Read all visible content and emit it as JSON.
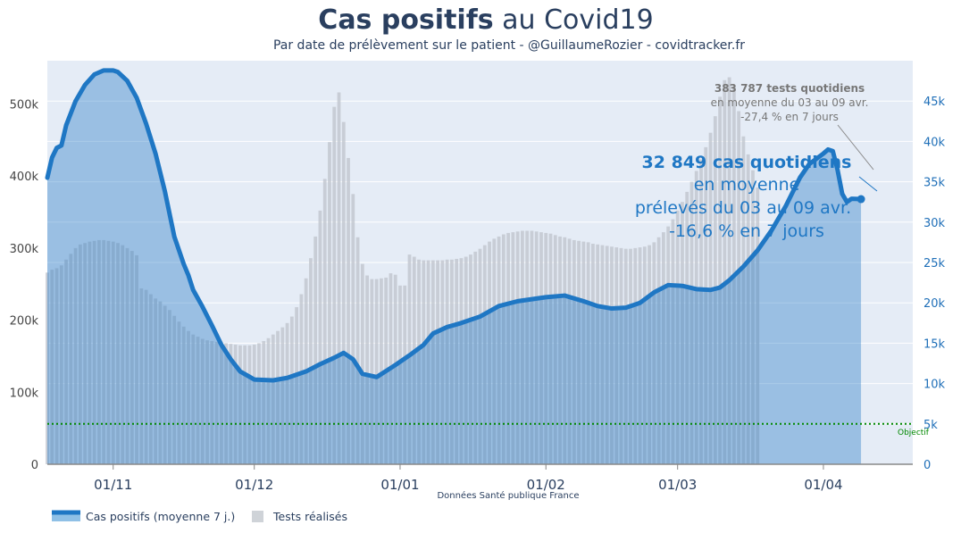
{
  "header": {
    "title_bold": "Cas positifs",
    "title_rest": " au Covid19",
    "subtitle": "Par date de prélèvement sur le patient - @GuillaumeRozier - covidtracker.fr"
  },
  "source": "Données Santé publique France",
  "legend": {
    "cases_label": "Cas positifs (moyenne 7 j.)",
    "tests_label": "Tests réalisés"
  },
  "annotations": {
    "tests": {
      "line1": "383 787 tests quotidiens",
      "line2": "en moyenne du 03 au 09 avr.",
      "line3": "-27,4 % en 7 jours"
    },
    "cases": {
      "line1": "32 849 cas quotidiens",
      "line2": "en moyenne",
      "line3": "prélevés du 03 au 09 avr.",
      "line4": "-16,6 % en 7 jours"
    },
    "objectif_label": "Objectif"
  },
  "colors": {
    "cases_line": "#1f77c4",
    "cases_fill": "#8fc0e6",
    "tests_bar": "#c3c8d0",
    "plot_bg": "#e5ecf6",
    "objectif_line": "#008800",
    "title": "#2a3f5f"
  },
  "chart_data": {
    "type": "bar+line",
    "x_ticks": [
      "01/11",
      "01/12",
      "01/01",
      "01/02",
      "01/03",
      "01/04"
    ],
    "y_left_ticks": [
      "0",
      "100k",
      "200k",
      "300k",
      "400k",
      "500k"
    ],
    "y_left_range": [
      0,
      560000
    ],
    "y_right_ticks": [
      "0",
      "5k",
      "10k",
      "15k",
      "20k",
      "25k",
      "30k",
      "35k",
      "40k",
      "45k"
    ],
    "y_right_range": [
      0,
      50000
    ],
    "objectif_value": 5000,
    "x_start": "2020-10-18",
    "x_end": "2021-04-20",
    "tests_series": {
      "name": "Tests réalisés",
      "start": "2020-10-18",
      "values": [
        266000,
        270000,
        272000,
        276000,
        284000,
        292000,
        300000,
        305000,
        307000,
        309000,
        310000,
        311000,
        311000,
        310000,
        309000,
        307000,
        304000,
        300000,
        296000,
        290000,
        244000,
        242000,
        236000,
        230000,
        226000,
        220000,
        214000,
        206000,
        198000,
        191000,
        185000,
        180000,
        177000,
        174000,
        172000,
        171000,
        170000,
        169000,
        168000,
        167000,
        166000,
        165000,
        165000,
        165000,
        166000,
        168000,
        171000,
        175000,
        180000,
        185000,
        190000,
        196000,
        205000,
        218000,
        236000,
        258000,
        286000,
        316000,
        352000,
        396000,
        447000,
        496000,
        516000,
        475000,
        425000,
        375000,
        315000,
        278000,
        262000,
        257000,
        257000,
        258000,
        259000,
        265000,
        263000,
        248000,
        248000,
        291000,
        288000,
        284000,
        283000,
        283000,
        283000,
        283000,
        283000,
        284000,
        284000,
        285000,
        286000,
        288000,
        291000,
        295000,
        299000,
        304000,
        309000,
        313000,
        316000,
        319000,
        321000,
        322000,
        323000,
        324000,
        324000,
        324000,
        323000,
        322000,
        321000,
        320000,
        318000,
        316000,
        315000,
        313000,
        311000,
        310000,
        309000,
        308000,
        306000,
        305000,
        304000,
        303000,
        302000,
        301000,
        300000,
        299000,
        299000,
        300000,
        301000,
        302000,
        304000,
        308000,
        315000,
        322000,
        330000,
        340000,
        352000,
        364000,
        378000,
        392000,
        407000,
        423000,
        440000,
        460000,
        483000,
        510000,
        533000,
        537000,
        524000,
        490000,
        455000,
        430000,
        408000,
        384000
      ]
    },
    "cases_series": {
      "name": "Cas positifs (moyenne 7 j.)",
      "points": [
        [
          "2020-10-18",
          35500
        ],
        [
          "2020-10-19",
          38000
        ],
        [
          "2020-10-20",
          39200
        ],
        [
          "2020-10-21",
          39500
        ],
        [
          "2020-10-22",
          42000
        ],
        [
          "2020-10-24",
          45000
        ],
        [
          "2020-10-26",
          47000
        ],
        [
          "2020-10-28",
          48300
        ],
        [
          "2020-10-30",
          48800
        ],
        [
          "2020-11-01",
          48800
        ],
        [
          "2020-11-02",
          48600
        ],
        [
          "2020-11-04",
          47500
        ],
        [
          "2020-11-06",
          45400
        ],
        [
          "2020-11-08",
          42200
        ],
        [
          "2020-11-10",
          38500
        ],
        [
          "2020-11-12",
          33800
        ],
        [
          "2020-11-14",
          28200
        ],
        [
          "2020-11-16",
          24800
        ],
        [
          "2020-11-17",
          23400
        ],
        [
          "2020-11-18",
          21600
        ],
        [
          "2020-11-20",
          19500
        ],
        [
          "2020-11-22",
          17200
        ],
        [
          "2020-11-24",
          14800
        ],
        [
          "2020-11-26",
          13000
        ],
        [
          "2020-11-28",
          11500
        ],
        [
          "2020-12-01",
          10500
        ],
        [
          "2020-12-05",
          10400
        ],
        [
          "2020-12-08",
          10700
        ],
        [
          "2020-12-12",
          11500
        ],
        [
          "2020-12-15",
          12400
        ],
        [
          "2020-12-18",
          13200
        ],
        [
          "2020-12-20",
          13800
        ],
        [
          "2020-12-22",
          13000
        ],
        [
          "2020-12-24",
          11200
        ],
        [
          "2020-12-27",
          10800
        ],
        [
          "2020-12-31",
          12300
        ],
        [
          "2021-01-03",
          13500
        ],
        [
          "2021-01-06",
          14800
        ],
        [
          "2021-01-08",
          16200
        ],
        [
          "2021-01-11",
          17000
        ],
        [
          "2021-01-14",
          17500
        ],
        [
          "2021-01-18",
          18300
        ],
        [
          "2021-01-22",
          19600
        ],
        [
          "2021-01-26",
          20200
        ],
        [
          "2021-02-01",
          20700
        ],
        [
          "2021-02-05",
          20900
        ],
        [
          "2021-02-09",
          20200
        ],
        [
          "2021-02-12",
          19600
        ],
        [
          "2021-02-15",
          19300
        ],
        [
          "2021-02-18",
          19400
        ],
        [
          "2021-02-21",
          20000
        ],
        [
          "2021-02-24",
          21300
        ],
        [
          "2021-02-27",
          22200
        ],
        [
          "2021-03-02",
          22100
        ],
        [
          "2021-03-05",
          21700
        ],
        [
          "2021-03-08",
          21600
        ],
        [
          "2021-03-10",
          21900
        ],
        [
          "2021-03-12",
          22800
        ],
        [
          "2021-03-15",
          24500
        ],
        [
          "2021-03-18",
          26500
        ],
        [
          "2021-03-21",
          29000
        ],
        [
          "2021-03-24",
          32000
        ],
        [
          "2021-03-27",
          35500
        ],
        [
          "2021-03-29",
          37200
        ],
        [
          "2021-04-01",
          38500
        ],
        [
          "2021-04-02",
          39000
        ],
        [
          "2021-04-03",
          38800
        ],
        [
          "2021-04-04",
          36500
        ],
        [
          "2021-04-05",
          33500
        ],
        [
          "2021-04-06",
          32500
        ],
        [
          "2021-04-07",
          32900
        ],
        [
          "2021-04-09",
          32849
        ]
      ]
    }
  }
}
